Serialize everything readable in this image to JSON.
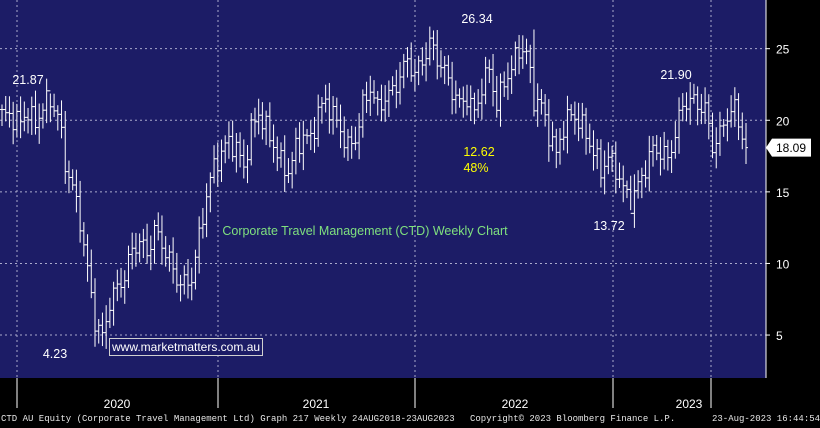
{
  "chart_data": {
    "type": "ohlc",
    "title": "Corporate Travel Management (CTD) Weekly Chart",
    "watermark": "www.marketmatters.com.au",
    "y_ticks": [
      5,
      10,
      15,
      20,
      25
    ],
    "ylim": [
      2,
      28.4
    ],
    "x_ticks": [
      "2020",
      "2021",
      "2022",
      "2023"
    ],
    "last_price_label": "18.09",
    "annotations": {
      "high_2020": "21.87",
      "low_2020": "4.23",
      "high_2021": "26.34",
      "low_2022": "13.72",
      "high_2023": "21.90",
      "pullback_price": "12.62",
      "pullback_pct": "48%"
    },
    "anchors": [
      [
        0,
        20.4
      ],
      [
        3,
        20.2
      ],
      [
        5,
        19.8
      ],
      [
        7,
        20.7
      ],
      [
        9,
        19.6
      ],
      [
        11,
        21.1
      ],
      [
        13,
        21.3
      ],
      [
        15,
        20.5
      ],
      [
        17,
        17.0
      ],
      [
        19,
        15.3
      ],
      [
        21,
        13.0
      ],
      [
        23,
        9.5
      ],
      [
        25,
        6.0
      ],
      [
        27,
        4.8
      ],
      [
        29,
        7.3
      ],
      [
        31,
        8.3
      ],
      [
        33,
        9.1
      ],
      [
        35,
        11.0
      ],
      [
        37,
        11.5
      ],
      [
        39,
        10.7
      ],
      [
        41,
        12.3
      ],
      [
        43,
        11.4
      ],
      [
        45,
        10.2
      ],
      [
        47,
        8.9
      ],
      [
        49,
        8.5
      ],
      [
        51,
        9.0
      ],
      [
        53,
        11.8
      ],
      [
        55,
        14.8
      ],
      [
        57,
        16.8
      ],
      [
        59,
        17.7
      ],
      [
        61,
        18.6
      ],
      [
        63,
        18.0
      ],
      [
        65,
        16.7
      ],
      [
        67,
        19.3
      ],
      [
        69,
        20.5
      ],
      [
        71,
        19.4
      ],
      [
        73,
        18.3
      ],
      [
        75,
        17.0
      ],
      [
        77,
        16.4
      ],
      [
        79,
        18.0
      ],
      [
        81,
        18.9
      ],
      [
        83,
        18.6
      ],
      [
        85,
        20.6
      ],
      [
        87,
        21.3
      ],
      [
        89,
        20.4
      ],
      [
        91,
        19.3
      ],
      [
        93,
        18.1
      ],
      [
        95,
        18.7
      ],
      [
        97,
        21.0
      ],
      [
        99,
        22.3
      ],
      [
        101,
        20.8
      ],
      [
        103,
        21.6
      ],
      [
        105,
        22.0
      ],
      [
        107,
        23.1
      ],
      [
        109,
        24.2
      ],
      [
        111,
        23.2
      ],
      [
        113,
        24.1
      ],
      [
        115,
        25.4
      ],
      [
        117,
        24.3
      ],
      [
        119,
        23.4
      ],
      [
        121,
        22.1
      ],
      [
        123,
        21.1
      ],
      [
        125,
        21.6
      ],
      [
        127,
        20.5
      ],
      [
        129,
        22.3
      ],
      [
        131,
        23.6
      ],
      [
        133,
        21.0
      ],
      [
        135,
        22.7
      ],
      [
        137,
        23.6
      ],
      [
        139,
        25.0
      ],
      [
        141,
        24.7
      ],
      [
        143,
        21.5
      ],
      [
        145,
        21.0
      ],
      [
        147,
        19.1
      ],
      [
        149,
        17.6
      ],
      [
        151,
        19.6
      ],
      [
        153,
        20.4
      ],
      [
        155,
        20.0
      ],
      [
        157,
        19.0
      ],
      [
        159,
        17.8
      ],
      [
        161,
        16.5
      ],
      [
        163,
        17.4
      ],
      [
        165,
        16.6
      ],
      [
        167,
        15.2
      ],
      [
        169,
        14.3
      ],
      [
        171,
        15.4
      ],
      [
        173,
        16.7
      ],
      [
        175,
        18.0
      ],
      [
        177,
        17.8
      ],
      [
        179,
        17.3
      ],
      [
        181,
        19.0
      ],
      [
        183,
        21.1
      ],
      [
        185,
        21.4
      ],
      [
        187,
        21.1
      ],
      [
        189,
        20.8
      ],
      [
        191,
        18.2
      ],
      [
        193,
        19.0
      ],
      [
        195,
        20.4
      ],
      [
        197,
        20.8
      ],
      [
        199,
        19.0
      ],
      [
        200,
        18.09
      ]
    ],
    "spikes": [
      [
        13,
        21.87,
        "h"
      ],
      [
        27,
        4.23,
        "l"
      ],
      [
        143,
        26.34,
        "h"
      ],
      [
        169,
        13.72,
        "l"
      ],
      [
        183,
        21.9,
        "h"
      ]
    ]
  },
  "footer": {
    "left": "CTD AU Equity (Corporate Travel Management Ltd) Graph 217  Weekly 24AUG2018-23AUG2023",
    "center": "Copyright© 2023 Bloomberg Finance L.P.",
    "right": "23-Aug-2023 16:44:54"
  },
  "colors": {
    "plot_bg": "#1c1c66",
    "grid": "#aaaacc",
    "bars": "#ffffff",
    "title_text": "#7fe07f",
    "pullback_text": "#ffff00",
    "annotation_text": "#ffffff",
    "price_tag_bg": "#ffffff",
    "price_tag_text": "#000000"
  }
}
